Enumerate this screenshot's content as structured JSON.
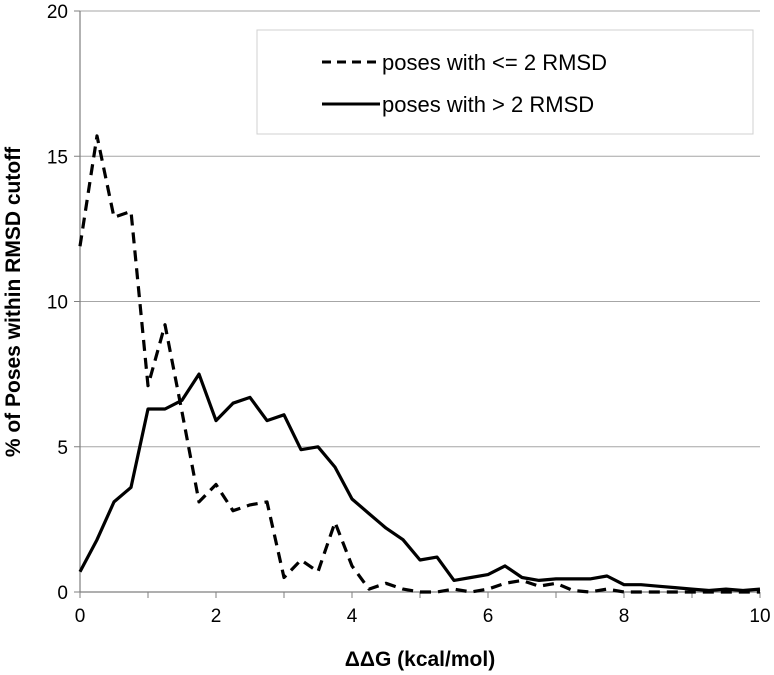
{
  "chart_data": {
    "type": "line",
    "title": "",
    "xlabel": "ΔΔG (kcal/mol)",
    "ylabel": "% of Poses within RMSD cutoff",
    "xlim": [
      0,
      10
    ],
    "ylim": [
      0,
      20
    ],
    "xticks": [
      0,
      2,
      4,
      6,
      8,
      10
    ],
    "yticks": [
      0,
      5,
      10,
      15,
      20
    ],
    "grid": "horizontal",
    "legend_position": "top-right",
    "series": [
      {
        "name": "poses with <= 2 RMSD",
        "style": "dashed",
        "color": "#000000",
        "x": [
          0,
          0.25,
          0.5,
          0.75,
          1.0,
          1.25,
          1.5,
          1.75,
          2.0,
          2.25,
          2.5,
          2.75,
          3.0,
          3.25,
          3.5,
          3.75,
          4.0,
          4.25,
          4.5,
          4.75,
          5.0,
          5.25,
          5.5,
          5.75,
          6.0,
          6.25,
          6.5,
          6.75,
          7.0,
          7.25,
          7.5,
          7.75,
          8.0,
          8.25,
          8.5,
          8.75,
          9.0,
          9.25,
          9.5,
          9.75,
          10.0
        ],
        "y": [
          11.9,
          15.7,
          12.9,
          13.1,
          7.1,
          9.2,
          6.2,
          3.1,
          3.7,
          2.8,
          3.0,
          3.1,
          0.5,
          1.1,
          0.7,
          2.4,
          0.9,
          0.1,
          0.3,
          0.1,
          0.0,
          0.0,
          0.1,
          0.0,
          0.1,
          0.3,
          0.4,
          0.2,
          0.3,
          0.05,
          0.0,
          0.1,
          0.0,
          0.0,
          0.0,
          0.0,
          0.0,
          0.0,
          0.0,
          0.0,
          0.0
        ]
      },
      {
        "name": "poses with > 2 RMSD",
        "style": "solid",
        "color": "#000000",
        "x": [
          0,
          0.25,
          0.5,
          0.75,
          1.0,
          1.25,
          1.5,
          1.75,
          2.0,
          2.25,
          2.5,
          2.75,
          3.0,
          3.25,
          3.5,
          3.75,
          4.0,
          4.25,
          4.5,
          4.75,
          5.0,
          5.25,
          5.5,
          5.75,
          6.0,
          6.25,
          6.5,
          6.75,
          7.0,
          7.25,
          7.5,
          7.75,
          8.0,
          8.25,
          8.5,
          8.75,
          9.0,
          9.25,
          9.5,
          9.75,
          10.0
        ],
        "y": [
          0.7,
          1.8,
          3.1,
          3.6,
          6.3,
          6.3,
          6.6,
          7.5,
          5.9,
          6.5,
          6.7,
          5.9,
          6.1,
          4.9,
          5.0,
          4.3,
          3.2,
          2.7,
          2.2,
          1.8,
          1.1,
          1.2,
          0.4,
          0.5,
          0.6,
          0.9,
          0.5,
          0.4,
          0.45,
          0.45,
          0.45,
          0.55,
          0.25,
          0.25,
          0.2,
          0.15,
          0.1,
          0.05,
          0.1,
          0.05,
          0.1
        ]
      }
    ]
  }
}
